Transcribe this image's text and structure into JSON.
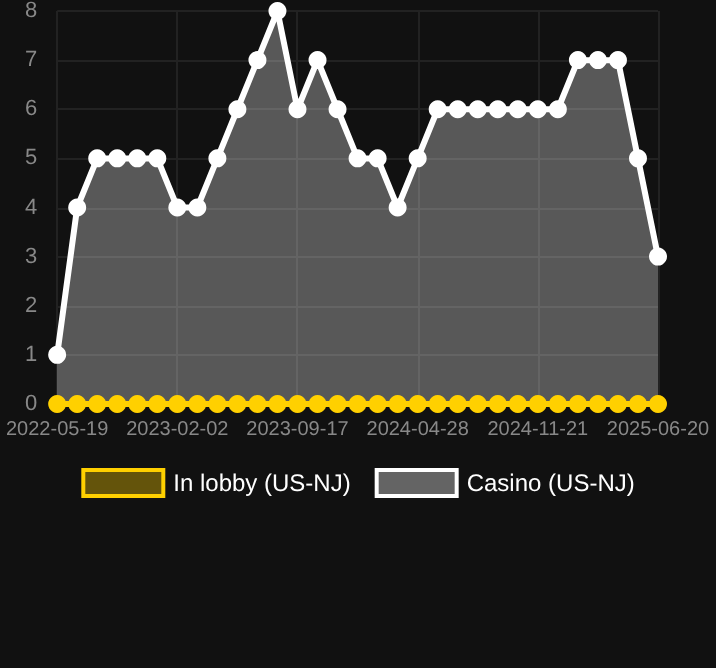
{
  "chart_data": {
    "type": "area",
    "categories": [
      "2022-05-19",
      null,
      null,
      null,
      null,
      null,
      "2023-02-02",
      null,
      null,
      null,
      null,
      null,
      "2023-09-17",
      null,
      null,
      null,
      null,
      null,
      "2024-04-28",
      null,
      null,
      null,
      null,
      null,
      "2024-11-21",
      null,
      null,
      null,
      null,
      null,
      "2025-06-20"
    ],
    "series": [
      {
        "name": "In lobby (US-NJ)",
        "type": "line",
        "color": "#ffd000",
        "values": [
          0,
          0,
          0,
          0,
          0,
          0,
          0,
          0,
          0,
          0,
          0,
          0,
          0,
          0,
          0,
          0,
          0,
          0,
          0,
          0,
          0,
          0,
          0,
          0,
          0,
          0,
          0,
          0,
          0,
          0,
          0
        ]
      },
      {
        "name": "Casino (US-NJ)",
        "color": "#ffffff",
        "values": [
          1,
          4,
          5,
          5,
          5,
          5,
          4,
          4,
          5,
          6,
          7,
          8,
          6,
          7,
          6,
          5,
          5,
          4,
          5,
          6,
          6,
          6,
          6,
          6,
          6,
          6,
          7,
          7,
          7,
          5,
          3
        ]
      }
    ],
    "ylim": [
      0,
      8
    ],
    "yticks": [
      0,
      1,
      2,
      3,
      4,
      5,
      6,
      7,
      8
    ],
    "grid": true,
    "legend": "bottom",
    "marker": "circle",
    "line_style": "solid"
  }
}
